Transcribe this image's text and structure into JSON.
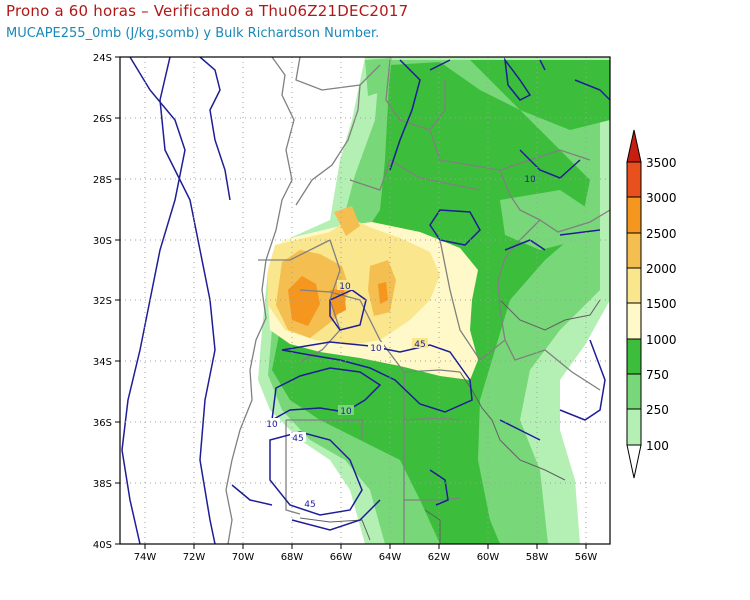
{
  "title": "Prono a 60 horas – Verificando a Thu06Z21DEC2017",
  "subtitle": "MUCAPE255_0mb (J/kg,somb) y Bulk Richardson Number.",
  "map": {
    "x_ticks": [
      "74W",
      "72W",
      "70W",
      "68W",
      "66W",
      "64W",
      "62W",
      "60W",
      "58W",
      "56W"
    ],
    "y_ticks": [
      "24S",
      "26S",
      "28S",
      "30S",
      "32S",
      "34S",
      "36S",
      "38S",
      "40S"
    ]
  },
  "colorbar": {
    "labels": [
      "3500",
      "3000",
      "2500",
      "2000",
      "1500",
      "1000",
      "750",
      "250",
      "100"
    ],
    "colors": [
      "#c81e0f",
      "#e8501e",
      "#f5961e",
      "#f5be50",
      "#fae68c",
      "#fff8c8",
      "#3cbe3c",
      "#78d778",
      "#b4f0b4",
      "#ffffff"
    ]
  },
  "contour_labels": [
    "10",
    "10",
    "10",
    "10",
    "45",
    "10",
    "45",
    "45"
  ]
}
